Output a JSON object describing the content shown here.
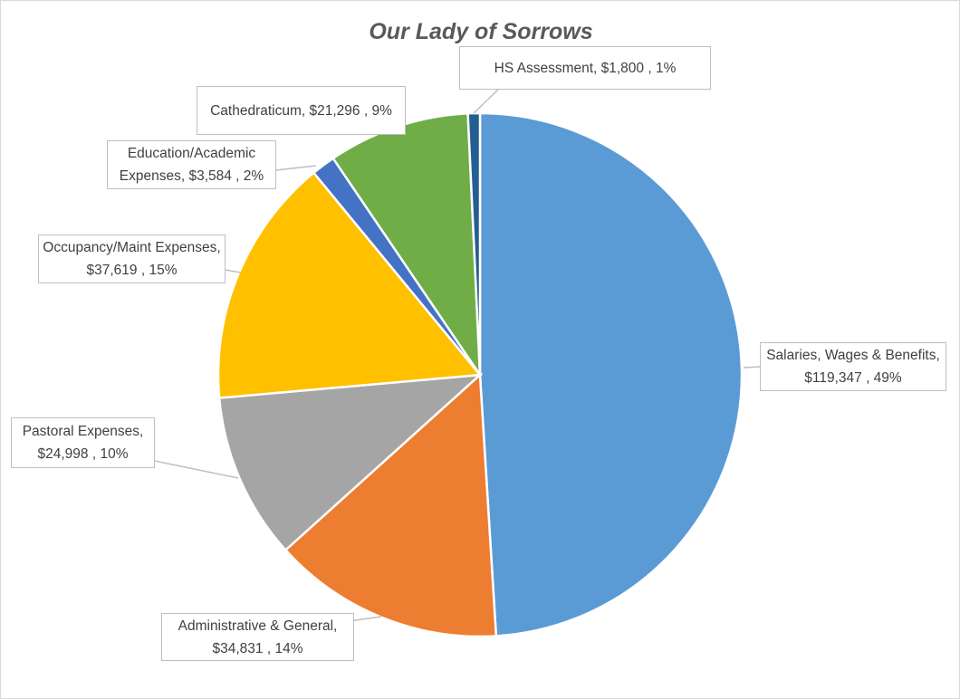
{
  "chart_data": {
    "type": "pie",
    "title": "Our Lady of Sorrows",
    "start_angle_deg": 0,
    "direction": "clockwise",
    "slices": [
      {
        "name": "Salaries, Wages & Benefits",
        "value": 119347,
        "label": "Salaries, Wages & Benefits,  $119,347 , 49%",
        "color": "#5B9BD5"
      },
      {
        "name": "Administrative & General",
        "value": 34831,
        "label": "Administrative & General, $34,831 , 14%",
        "color": "#ED7D31"
      },
      {
        "name": "Pastoral Expenses",
        "value": 24998,
        "label": "Pastoral Expenses, $24,998 , 10%",
        "color": "#A5A5A5"
      },
      {
        "name": "Occupancy/Maint Expenses",
        "value": 37619,
        "label": "Occupancy/Maint Expenses, $37,619 , 15%",
        "color": "#FFC000"
      },
      {
        "name": "Education/Academic Expenses",
        "value": 3584,
        "label": "Education/Academic Expenses, $3,584 , 2%",
        "color": "#4472C4"
      },
      {
        "name": "Cathedraticum",
        "value": 21296,
        "label": "Cathedraticum,  $21,296 , 9%",
        "color": "#70AD47"
      },
      {
        "name": "HS Assessment",
        "value": 1800,
        "label": "HS Assessment, $1,800 , 1%",
        "color": "#255E91"
      }
    ]
  }
}
